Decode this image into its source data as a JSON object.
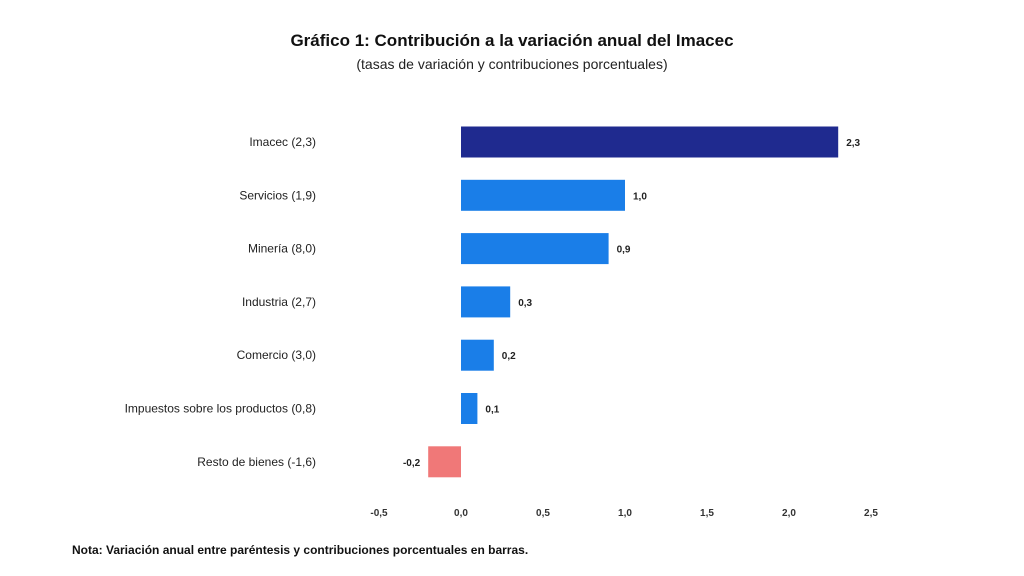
{
  "chart_data": {
    "type": "bar",
    "orientation": "horizontal",
    "title": "Gráfico 1: Contribución a la variación anual del Imacec",
    "subtitle": "(tasas de variación y contribuciones porcentuales)",
    "categories": [
      "Imacec (2,3)",
      "Servicios (1,9)",
      "Minería (8,0)",
      "Industria (2,7)",
      "Comercio (3,0)",
      "Impuestos sobre los productos (0,8)",
      "Resto de bienes (-1,6)"
    ],
    "values": [
      2.3,
      1.0,
      0.9,
      0.3,
      0.2,
      0.1,
      -0.2
    ],
    "value_labels": [
      "2,3",
      "1,0",
      "0,9",
      "0,3",
      "0,2",
      "0,1",
      "-0,2"
    ],
    "xlim": [
      -0.5,
      2.5
    ],
    "xticks": [
      -0.5,
      0.0,
      0.5,
      1.0,
      1.5,
      2.0,
      2.5
    ],
    "xtick_labels": [
      "-0,5",
      "0,0",
      "0,5",
      "1,0",
      "1,5",
      "2,0",
      "2,5"
    ],
    "grid": false,
    "colors": {
      "total": "#1f2a8f",
      "positive": "#1a7ee8",
      "negative": "#f07878"
    }
  },
  "note": "Nota: Variación anual entre paréntesis y contribuciones porcentuales en barras."
}
